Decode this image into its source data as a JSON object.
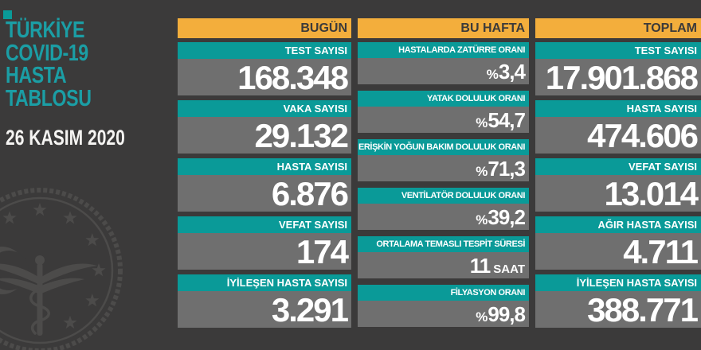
{
  "colors": {
    "background": "#3b3a3a",
    "teal": "#0a9a98",
    "title_teal": "#1b9ea5",
    "yellow": "#f3ae3c",
    "gray_bar": "#6f6f6f",
    "white": "#f5f4f2",
    "emblem_gray": "#4c4b4a"
  },
  "sidebar": {
    "title_lines": [
      "TÜRKİYE",
      "COVID-19",
      "HASTA",
      "TABLOSU"
    ],
    "date": "26 KASIM 2020",
    "logo_name": "tc-saglik-bakanligi-emblem"
  },
  "chart_data": {
    "type": "table",
    "title": "TÜRKİYE COVID-19 HASTA TABLOSU",
    "date": "26 KASIM 2020",
    "legend_position": "none",
    "groups": [
      {
        "header": "BUGÜN",
        "size": "big",
        "rows": [
          {
            "label": "TEST SAYISI",
            "value": "168.348"
          },
          {
            "label": "VAKA SAYISI",
            "value": "29.132"
          },
          {
            "label": "HASTA SAYISI",
            "value": "6.876"
          },
          {
            "label": "VEFAT SAYISI",
            "value": "174"
          },
          {
            "label": "İYİLEŞEN HASTA SAYISI",
            "value": "3.291"
          }
        ]
      },
      {
        "header": "BU HAFTA",
        "size": "small",
        "rows": [
          {
            "label": "HASTALARDA ZATÜRRE ORANI",
            "prefix": "%",
            "value": "3,4"
          },
          {
            "label": "YATAK DOLULUK ORANI",
            "prefix": "%",
            "value": "54,7"
          },
          {
            "label": "ERİŞKİN YOĞUN BAKIM DOLULUK ORANI",
            "prefix": "%",
            "value": "71,3"
          },
          {
            "label": "VENTİLATÖR DOLULUK ORANI",
            "prefix": "%",
            "value": "39,2"
          },
          {
            "label": "ORTALAMA TEMASLI TESPİT SÜRESİ",
            "value": "11",
            "suffix": "SAAT"
          },
          {
            "label": "FİLYASYON ORANI",
            "prefix": "%",
            "value": "99,8"
          }
        ]
      },
      {
        "header": "TOPLAM",
        "size": "big",
        "rows": [
          {
            "label": "TEST SAYISI",
            "value": "17.901.868"
          },
          {
            "label": "HASTA SAYISI",
            "value": "474.606"
          },
          {
            "label": "VEFAT SAYISI",
            "value": "13.014"
          },
          {
            "label": "AĞIR HASTA SAYISI",
            "value": "4.711"
          },
          {
            "label": "İYİLEŞEN HASTA SAYISI",
            "value": "388.771"
          }
        ]
      }
    ]
  }
}
